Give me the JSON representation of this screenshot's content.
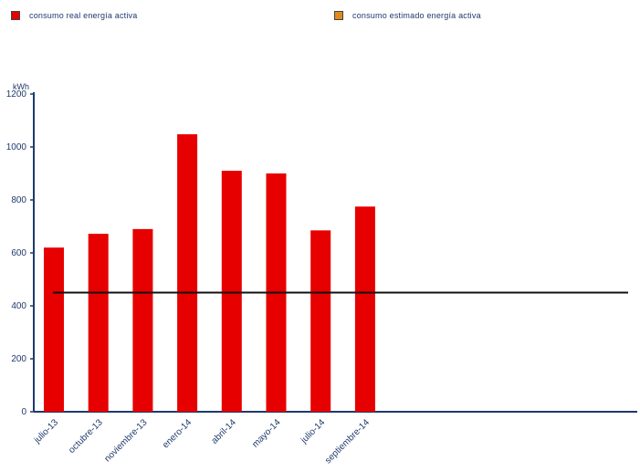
{
  "legend": {
    "items": [
      {
        "label": "consumo real energía activa",
        "color": "#e60000"
      },
      {
        "label": "consumo estimado  energía activa",
        "color": "#e08a1e"
      }
    ]
  },
  "chart_data": {
    "type": "bar",
    "ylabel": "kWh",
    "ylim": [
      0,
      1200
    ],
    "yticks": [
      0,
      200,
      400,
      600,
      800,
      1000,
      1200
    ],
    "categories": [
      "julio-13",
      "octubre-13",
      "noviembre-13",
      "enero-14",
      "abril-14",
      "mayo-14",
      "julio-14",
      "septiembre-14"
    ],
    "series": [
      {
        "name": "consumo real energía activa",
        "color": "#e60000",
        "values": [
          620,
          672,
          690,
          1048,
          910,
          900,
          685,
          775
        ]
      }
    ],
    "reference_line": {
      "value": 450,
      "color": "#111111"
    },
    "grid": false,
    "legend_position": "top"
  }
}
